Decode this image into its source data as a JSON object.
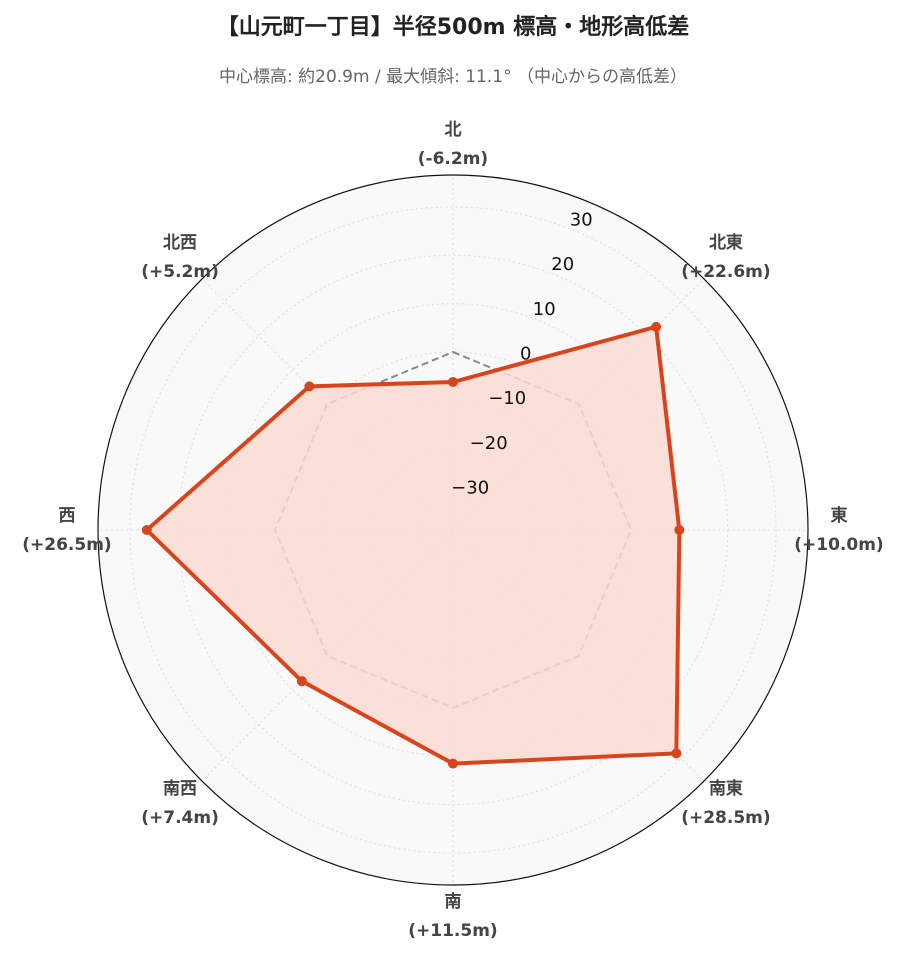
{
  "chart_data": {
    "type": "radar",
    "title": "【山元町一丁目】半径500m 標高・地形高低差",
    "subtitle": "中心標高: 約20.9m / 最大傾斜: 11.1° （中心からの高低差）",
    "categories": [
      "北",
      "北東",
      "東",
      "南東",
      "南",
      "南西",
      "西",
      "北西"
    ],
    "values": [
      -6.2,
      22.6,
      10.0,
      28.5,
      11.5,
      7.4,
      26.5,
      5.2
    ],
    "value_labels": [
      "(-6.2m)",
      "(+22.6m)",
      "(+10.0m)",
      "(+28.5m)",
      "(+11.5m)",
      "(+7.4m)",
      "(+26.5m)",
      "(+5.2m)"
    ],
    "color": "#d8451c",
    "fill_color": "#fcdcd3",
    "reference_line": 0,
    "reference_color": "#888888",
    "ylim": [
      -36.8,
      36.6
    ],
    "yticks": [
      {
        "value": -30,
        "label": "−30"
      },
      {
        "value": -20,
        "label": "−20"
      },
      {
        "value": -10,
        "label": "−10"
      },
      0,
      10,
      20,
      30
    ],
    "grid": true
  }
}
